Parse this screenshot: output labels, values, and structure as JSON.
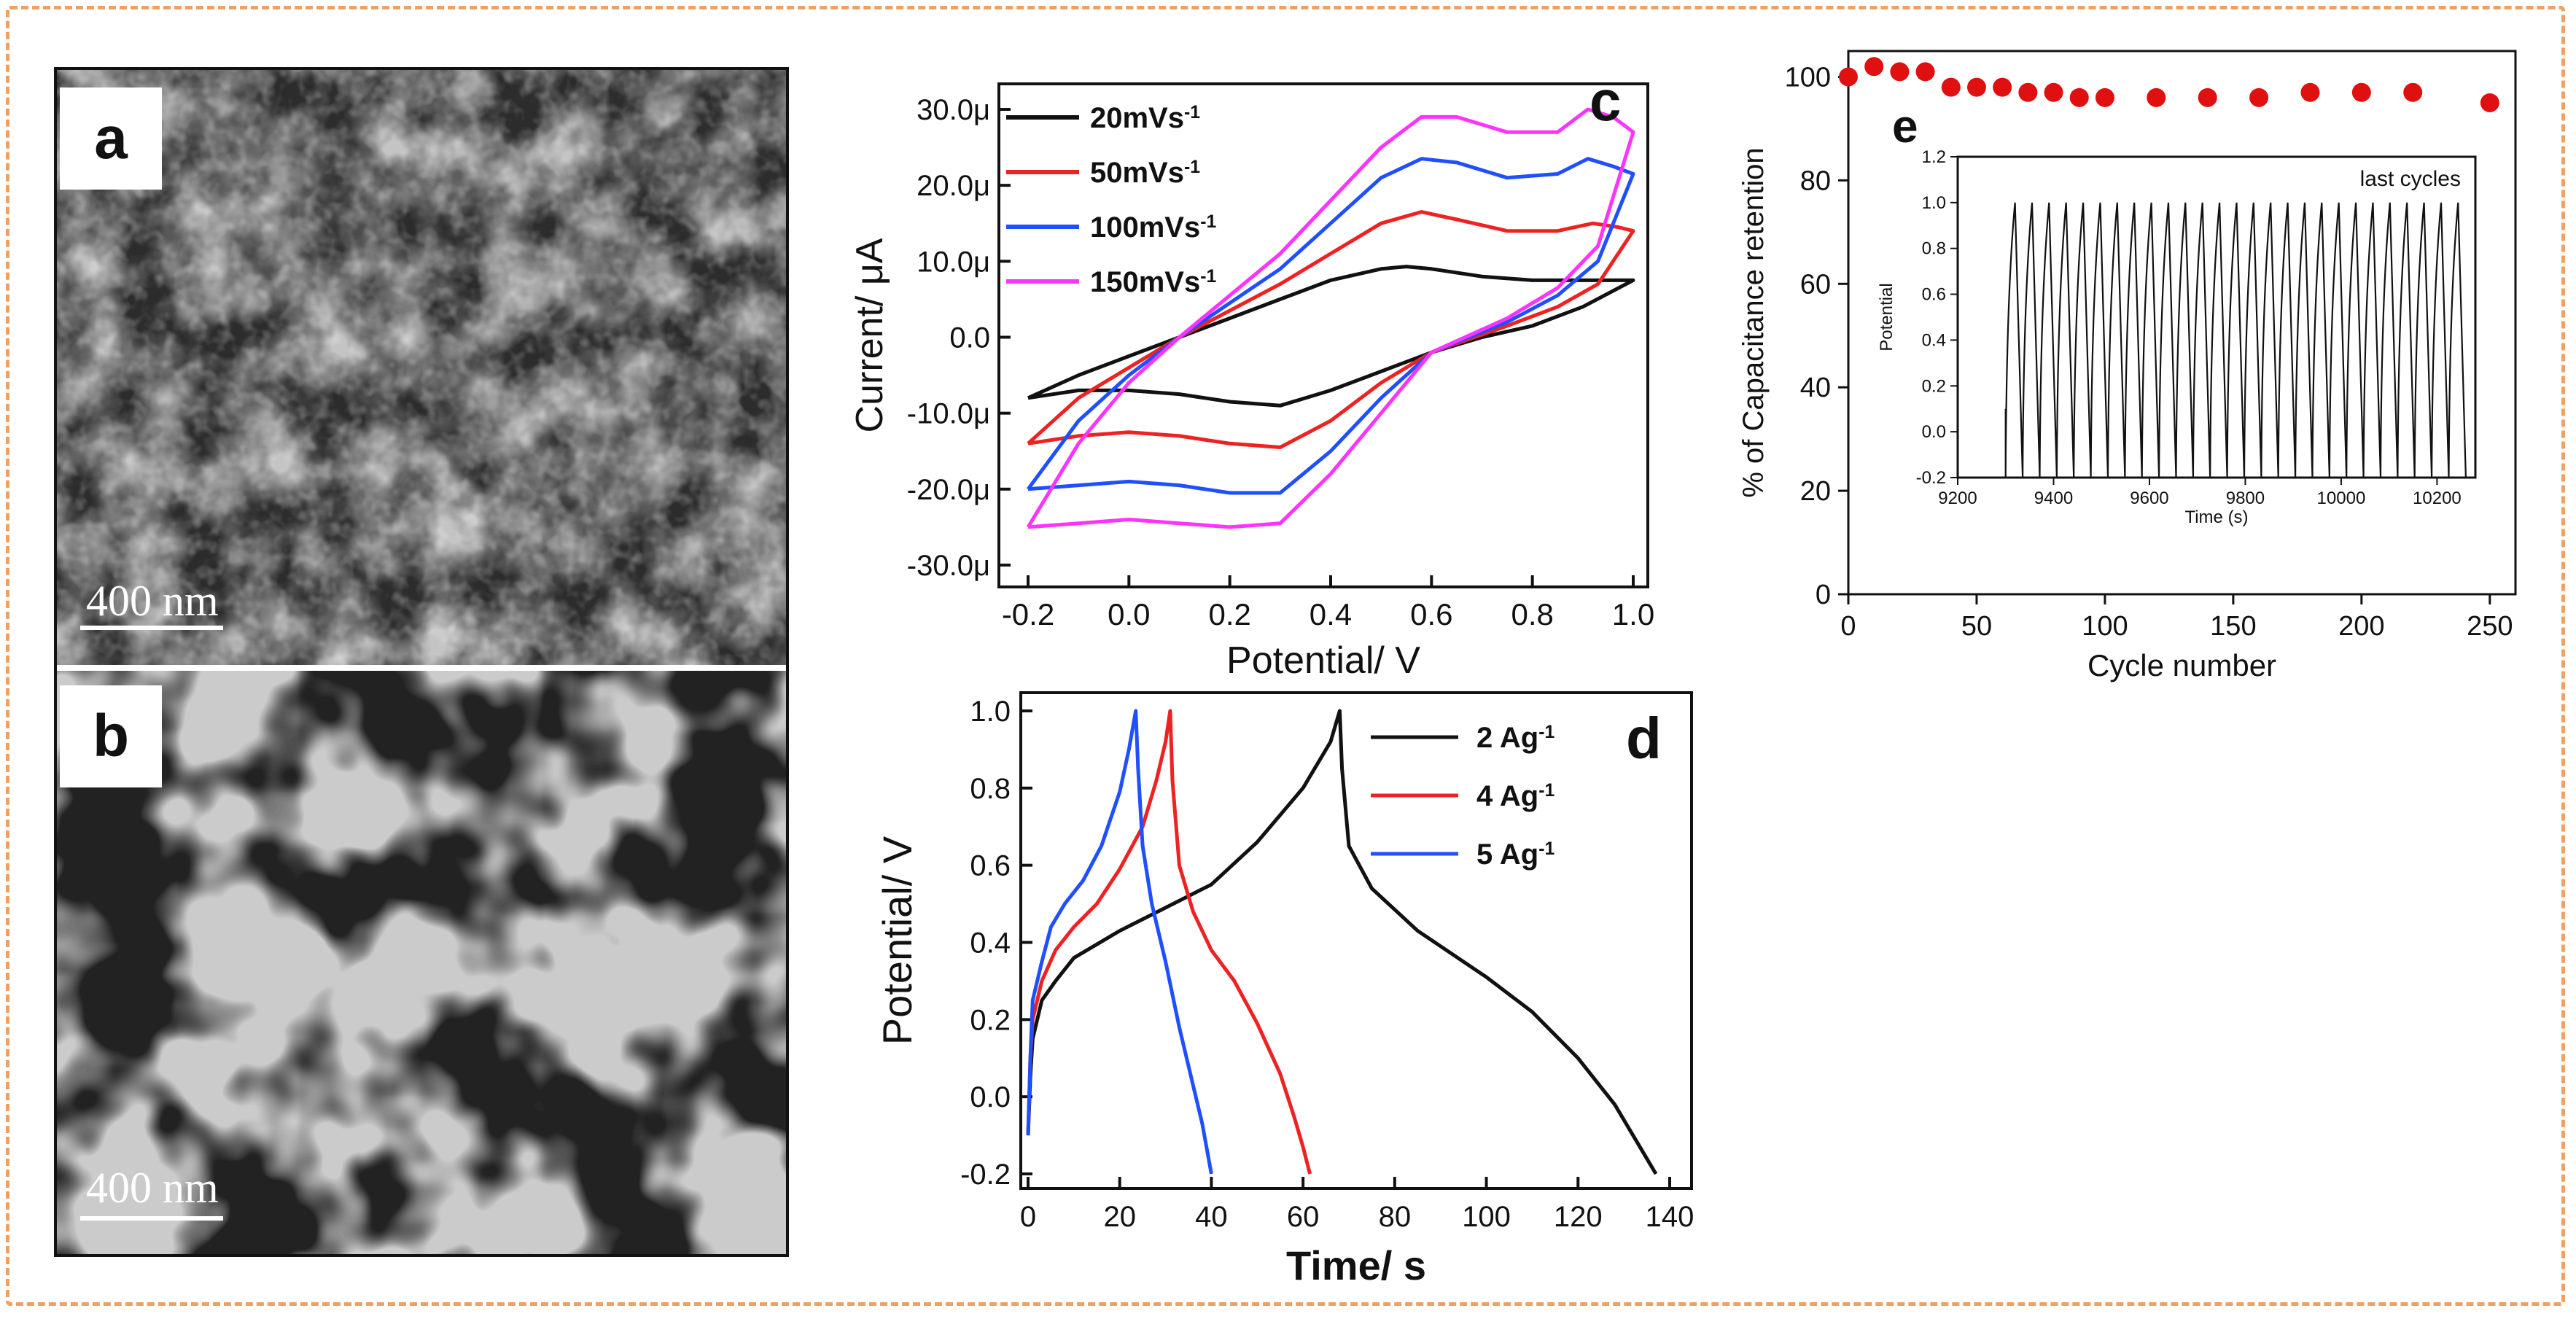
{
  "colors": {
    "frame_border": "#f0a060",
    "black": "#111111",
    "red": "#ee2222",
    "blue": "#1f4fff",
    "magenta": "#ff33ff",
    "marker_red": "#e01010"
  },
  "sem_panels": [
    {
      "letter": "a",
      "scale_label": "400 nm",
      "texture": "rough flaky grains"
    },
    {
      "letter": "b",
      "scale_label": "400 nm",
      "texture": "smooth porous network"
    }
  ],
  "chart_data": [
    {
      "panel": "c",
      "type": "line",
      "xlabel": "Potential/ V",
      "ylabel": "Current/ μA",
      "xlim": [
        -0.2,
        1.0
      ],
      "ylim": [
        -30,
        30
      ],
      "x_ticks": [
        "-0.2",
        "0.0",
        "0.2",
        "0.4",
        "0.6",
        "0.8",
        "1.0"
      ],
      "y_ticks": [
        "-30.0μ",
        "-20.0μ",
        "-10.0μ",
        "0.0",
        "10.0μ",
        "20.0μ",
        "30.0μ"
      ],
      "legend": {
        "placement": "top-left",
        "entries": [
          {
            "label": "20mVs",
            "sup": "-1"
          },
          {
            "label": "50mVs",
            "sup": "-1"
          },
          {
            "label": "100mVs",
            "sup": "-1"
          },
          {
            "label": "150mVs",
            "sup": "-1"
          }
        ]
      },
      "series": [
        {
          "name": "20mVs-1",
          "color": "#111111",
          "upper": [
            [
              -0.2,
              -8
            ],
            [
              -0.1,
              -5
            ],
            [
              0.0,
              -2.5
            ],
            [
              0.1,
              0
            ],
            [
              0.2,
              2.5
            ],
            [
              0.3,
              5
            ],
            [
              0.4,
              7.5
            ],
            [
              0.5,
              9
            ],
            [
              0.55,
              9.3
            ],
            [
              0.6,
              9
            ],
            [
              0.7,
              8
            ],
            [
              0.8,
              7.5
            ],
            [
              0.9,
              7.5
            ],
            [
              1.0,
              7.5
            ]
          ],
          "lower": [
            [
              1.0,
              7.5
            ],
            [
              0.9,
              4
            ],
            [
              0.8,
              1.5
            ],
            [
              0.7,
              0
            ],
            [
              0.6,
              -2
            ],
            [
              0.5,
              -4.5
            ],
            [
              0.4,
              -7
            ],
            [
              0.3,
              -9
            ],
            [
              0.2,
              -8.5
            ],
            [
              0.1,
              -7.5
            ],
            [
              0.0,
              -7
            ],
            [
              -0.1,
              -7
            ],
            [
              -0.2,
              -8
            ]
          ]
        },
        {
          "name": "50mVs-1",
          "color": "#ee2222",
          "upper": [
            [
              -0.2,
              -14
            ],
            [
              -0.1,
              -8
            ],
            [
              0.0,
              -4
            ],
            [
              0.1,
              0
            ],
            [
              0.2,
              3.5
            ],
            [
              0.3,
              7
            ],
            [
              0.4,
              11
            ],
            [
              0.5,
              15
            ],
            [
              0.58,
              16.5
            ],
            [
              0.65,
              15.5
            ],
            [
              0.75,
              14
            ],
            [
              0.85,
              14
            ],
            [
              0.92,
              15
            ],
            [
              0.97,
              14.5
            ],
            [
              1.0,
              14
            ]
          ],
          "lower": [
            [
              1.0,
              14
            ],
            [
              0.93,
              7
            ],
            [
              0.85,
              4
            ],
            [
              0.75,
              1.5
            ],
            [
              0.6,
              -2
            ],
            [
              0.5,
              -6
            ],
            [
              0.4,
              -11
            ],
            [
              0.3,
              -14.5
            ],
            [
              0.2,
              -14
            ],
            [
              0.1,
              -13
            ],
            [
              0.0,
              -12.5
            ],
            [
              -0.1,
              -13
            ],
            [
              -0.2,
              -14
            ]
          ]
        },
        {
          "name": "100mVs-1",
          "color": "#1f4fff",
          "upper": [
            [
              -0.2,
              -20
            ],
            [
              -0.1,
              -11
            ],
            [
              0.0,
              -5
            ],
            [
              0.1,
              0
            ],
            [
              0.2,
              4.5
            ],
            [
              0.3,
              9
            ],
            [
              0.4,
              15
            ],
            [
              0.5,
              21
            ],
            [
              0.58,
              23.5
            ],
            [
              0.65,
              23
            ],
            [
              0.75,
              21
            ],
            [
              0.85,
              21.5
            ],
            [
              0.91,
              23.5
            ],
            [
              0.96,
              22.5
            ],
            [
              1.0,
              21.5
            ]
          ],
          "lower": [
            [
              1.0,
              21.5
            ],
            [
              0.93,
              10
            ],
            [
              0.85,
              5.5
            ],
            [
              0.75,
              2
            ],
            [
              0.6,
              -2
            ],
            [
              0.5,
              -8
            ],
            [
              0.4,
              -15
            ],
            [
              0.3,
              -20.5
            ],
            [
              0.2,
              -20.5
            ],
            [
              0.1,
              -19.5
            ],
            [
              0.0,
              -19
            ],
            [
              -0.1,
              -19.5
            ],
            [
              -0.2,
              -20
            ]
          ]
        },
        {
          "name": "150mVs-1",
          "color": "#ff33ff",
          "upper": [
            [
              -0.2,
              -25
            ],
            [
              -0.1,
              -14
            ],
            [
              0.0,
              -6
            ],
            [
              0.1,
              0
            ],
            [
              0.2,
              5.5
            ],
            [
              0.3,
              11
            ],
            [
              0.4,
              18
            ],
            [
              0.5,
              25
            ],
            [
              0.58,
              29
            ],
            [
              0.65,
              29
            ],
            [
              0.75,
              27
            ],
            [
              0.85,
              27
            ],
            [
              0.91,
              30
            ],
            [
              0.96,
              29
            ],
            [
              1.0,
              27
            ]
          ],
          "lower": [
            [
              1.0,
              27
            ],
            [
              0.93,
              12
            ],
            [
              0.85,
              6.5
            ],
            [
              0.75,
              2.5
            ],
            [
              0.6,
              -2
            ],
            [
              0.5,
              -10
            ],
            [
              0.4,
              -18
            ],
            [
              0.3,
              -24.5
            ],
            [
              0.2,
              -25
            ],
            [
              0.1,
              -24.5
            ],
            [
              0.0,
              -24
            ],
            [
              -0.1,
              -24.5
            ],
            [
              -0.2,
              -25
            ]
          ]
        }
      ]
    },
    {
      "panel": "d",
      "type": "line",
      "xlabel": "Time/ s",
      "ylabel": "Potential/ V",
      "xlim": [
        0,
        140
      ],
      "ylim": [
        -0.2,
        1.0
      ],
      "x_ticks": [
        "0",
        "20",
        "40",
        "60",
        "80",
        "100",
        "120",
        "140"
      ],
      "y_ticks": [
        "-0.2",
        "0.0",
        "0.2",
        "0.4",
        "0.6",
        "0.8",
        "1.0"
      ],
      "legend": {
        "placement": "top-right",
        "entries": [
          {
            "label": "2 Ag",
            "sup": "-1"
          },
          {
            "label": "4 Ag",
            "sup": "-1"
          },
          {
            "label": "5 Ag",
            "sup": "-1"
          }
        ]
      },
      "series": [
        {
          "name": "2 Ag-1",
          "color": "#111111",
          "points": [
            [
              0,
              -0.1
            ],
            [
              0.5,
              0.05
            ],
            [
              1,
              0.15
            ],
            [
              3,
              0.25
            ],
            [
              6,
              0.3
            ],
            [
              10,
              0.36
            ],
            [
              20,
              0.43
            ],
            [
              30,
              0.49
            ],
            [
              40,
              0.55
            ],
            [
              50,
              0.66
            ],
            [
              60,
              0.8
            ],
            [
              66,
              0.92
            ],
            [
              68,
              1.0
            ],
            [
              68.5,
              0.85
            ],
            [
              70,
              0.65
            ],
            [
              75,
              0.54
            ],
            [
              85,
              0.43
            ],
            [
              100,
              0.31
            ],
            [
              110,
              0.22
            ],
            [
              120,
              0.1
            ],
            [
              128,
              -0.02
            ],
            [
              133,
              -0.12
            ],
            [
              137,
              -0.2
            ]
          ]
        },
        {
          "name": "4 Ag-1",
          "color": "#ee2222",
          "points": [
            [
              0,
              -0.1
            ],
            [
              0.5,
              0.1
            ],
            [
              1,
              0.2
            ],
            [
              3,
              0.3
            ],
            [
              6,
              0.38
            ],
            [
              10,
              0.44
            ],
            [
              15,
              0.5
            ],
            [
              20,
              0.59
            ],
            [
              25,
              0.7
            ],
            [
              28,
              0.82
            ],
            [
              30,
              0.92
            ],
            [
              31,
              1.0
            ],
            [
              31.5,
              0.82
            ],
            [
              33,
              0.6
            ],
            [
              36,
              0.48
            ],
            [
              40,
              0.38
            ],
            [
              45,
              0.3
            ],
            [
              50,
              0.19
            ],
            [
              55,
              0.06
            ],
            [
              58,
              -0.05
            ],
            [
              60,
              -0.13
            ],
            [
              61.5,
              -0.2
            ]
          ]
        },
        {
          "name": "5 Ag-1",
          "color": "#1f4fff",
          "points": [
            [
              0,
              -0.1
            ],
            [
              0.5,
              0.1
            ],
            [
              1,
              0.25
            ],
            [
              3,
              0.35
            ],
            [
              5,
              0.44
            ],
            [
              8,
              0.5
            ],
            [
              12,
              0.56
            ],
            [
              16,
              0.65
            ],
            [
              20,
              0.79
            ],
            [
              22,
              0.9
            ],
            [
              23.5,
              1.0
            ],
            [
              24,
              0.85
            ],
            [
              25,
              0.65
            ],
            [
              27,
              0.5
            ],
            [
              30,
              0.35
            ],
            [
              33,
              0.18
            ],
            [
              36,
              0.03
            ],
            [
              38,
              -0.07
            ],
            [
              40,
              -0.2
            ]
          ]
        }
      ]
    },
    {
      "panel": "e",
      "type": "scatter",
      "xlabel": "Cycle number",
      "ylabel": "% of Capacitance retention",
      "xlim": [
        0,
        260
      ],
      "ylim": [
        0,
        105
      ],
      "x_ticks": [
        "0",
        "50",
        "100",
        "150",
        "200",
        "250"
      ],
      "y_ticks": [
        "0",
        "20",
        "40",
        "60",
        "80",
        "100"
      ],
      "points": [
        [
          0,
          100
        ],
        [
          10,
          102
        ],
        [
          20,
          101
        ],
        [
          30,
          101
        ],
        [
          40,
          98
        ],
        [
          50,
          98
        ],
        [
          60,
          98
        ],
        [
          70,
          97
        ],
        [
          80,
          97
        ],
        [
          90,
          96
        ],
        [
          100,
          96
        ],
        [
          120,
          96
        ],
        [
          140,
          96
        ],
        [
          160,
          96
        ],
        [
          180,
          97
        ],
        [
          200,
          97
        ],
        [
          220,
          97
        ],
        [
          250,
          95
        ]
      ],
      "inset": {
        "label": "last cycles",
        "xlabel": "Time (s)",
        "ylabel": "Potential",
        "xlim": [
          9200,
          10280
        ],
        "ylim": [
          -0.2,
          1.2
        ],
        "x_ticks": [
          "9200",
          "9400",
          "9600",
          "9800",
          "10000",
          "10200"
        ],
        "y_ticks": [
          "-0.2",
          "0.0",
          "0.2",
          "0.4",
          "0.6",
          "0.8",
          "1.0",
          "1.2"
        ],
        "cycle_start": 9300,
        "cycle_end": 10260,
        "cycles": 27,
        "v_min": -0.2,
        "v_max": 1.0
      }
    }
  ]
}
